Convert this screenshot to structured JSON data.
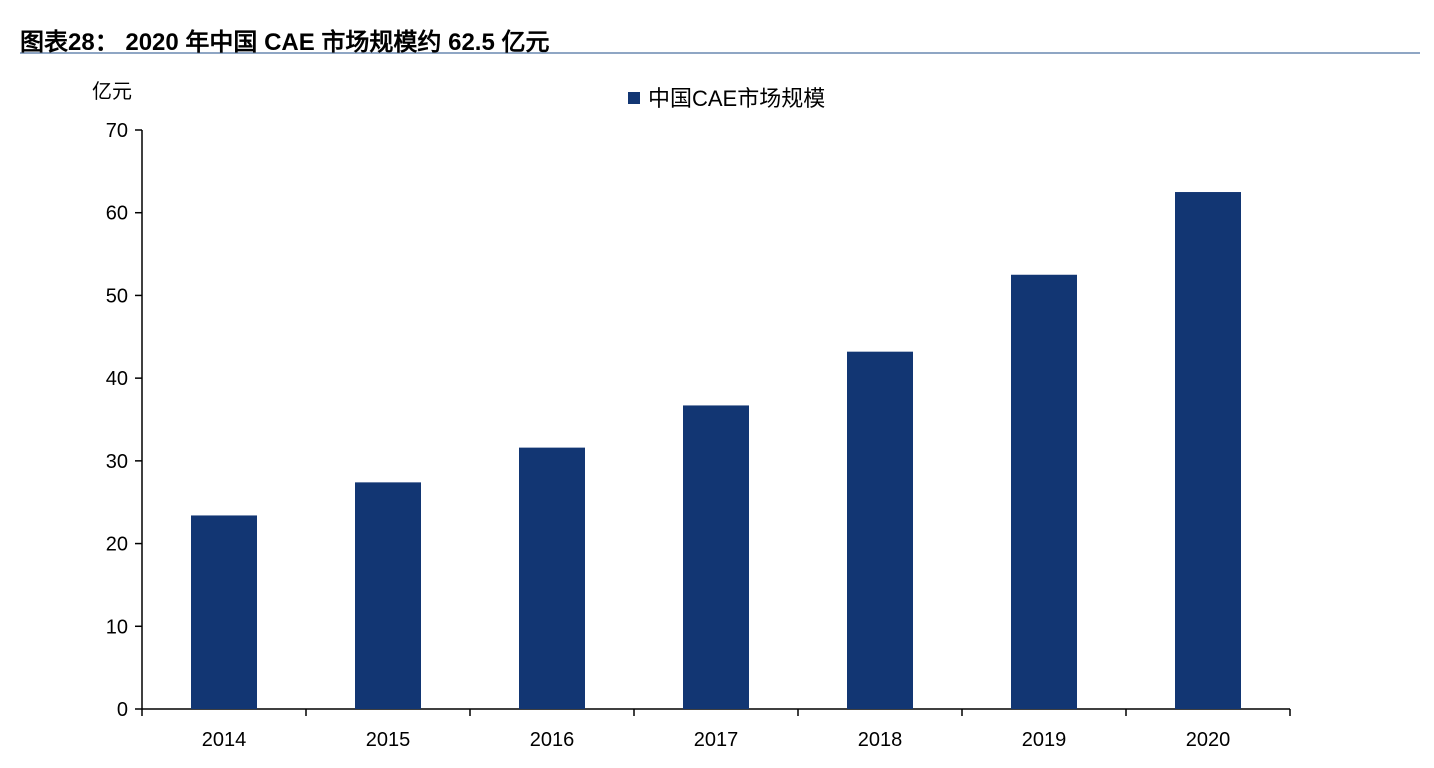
{
  "title": "图表28：  2020 年中国 CAE 市场规模约 62.5 亿元",
  "chart_data": {
    "type": "bar",
    "categories": [
      "2014",
      "2015",
      "2016",
      "2017",
      "2018",
      "2019",
      "2020"
    ],
    "series": [
      {
        "name": "中国CAE市场规模",
        "values": [
          23.4,
          27.4,
          31.6,
          36.7,
          43.2,
          52.5,
          62.5
        ],
        "color": "#123673"
      }
    ],
    "ylabel": "亿元",
    "ylim": [
      0,
      70
    ],
    "yticks": [
      0,
      10,
      20,
      30,
      40,
      50,
      60,
      70
    ],
    "grid": false,
    "legend_position": "top-center"
  }
}
